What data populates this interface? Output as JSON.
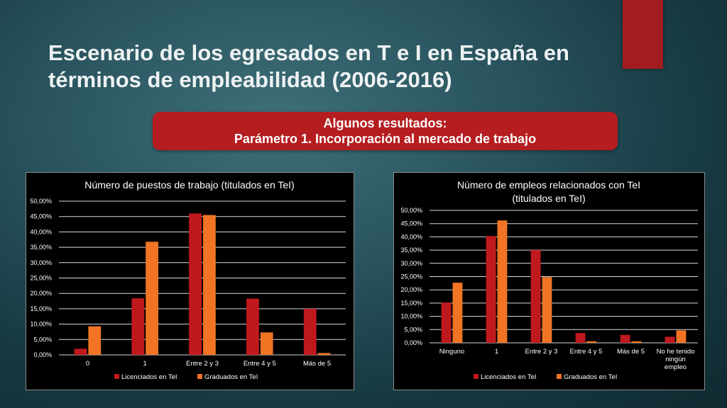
{
  "slide": {
    "title_line1": "Escenario de los egresados en T e I  en España en",
    "title_line2": "términos de empleabilidad (2006-2016)",
    "subtitle_line1": "Algunos resultados:",
    "subtitle_line2": "Parámetro 1. Incorporación al mercado de trabajo"
  },
  "colors": {
    "licenciados": "#c0191d",
    "graduados": "#f07424",
    "accent": "#a31c1f"
  },
  "chart_data": [
    {
      "type": "bar",
      "title": "Número de puestos de trabajo (titulados en TeI)",
      "categories": [
        [
          "0"
        ],
        [
          "1"
        ],
        [
          "Entre  2 y 3"
        ],
        [
          "Entre 4 y 5"
        ],
        [
          "Más de 5"
        ]
      ],
      "series": [
        {
          "name": "Licenciados en TeI",
          "values": [
            2.0,
            18.4,
            46.0,
            18.3,
            15.0
          ]
        },
        {
          "name": "Graduados en TeI",
          "values": [
            9.3,
            36.8,
            45.5,
            7.3,
            0.6
          ]
        }
      ],
      "ylim": [
        0,
        50
      ],
      "yticks": [
        "0,00%",
        "5,00%",
        "10,00%",
        "15,00%",
        "20,00%",
        "25,00%",
        "30,00%",
        "35,00%",
        "40,00%",
        "45,00%",
        "50,00%"
      ],
      "legend_position": "bottom"
    },
    {
      "type": "bar",
      "title": "Número de empleos relacionados con TeI (titulados en TeI)",
      "categories": [
        [
          "Ninguno"
        ],
        [
          "1"
        ],
        [
          "Entre 2 y 3"
        ],
        [
          "Entre 4 y 5"
        ],
        [
          "Más de 5"
        ],
        [
          "No he tenido",
          "ningún",
          "empleo"
        ]
      ],
      "series": [
        {
          "name": "Licenciados en TeI",
          "values": [
            15.2,
            40.3,
            35.0,
            3.7,
            3.0,
            2.3
          ]
        },
        {
          "name": "Graduados en TeI",
          "values": [
            22.7,
            46.2,
            24.8,
            0.6,
            0.6,
            4.7
          ]
        }
      ],
      "ylim": [
        0,
        50
      ],
      "yticks": [
        "0,00%",
        "5,00%",
        "10,00%",
        "15,00%",
        "20,00%",
        "25,00%",
        "30,00%",
        "35,00%",
        "40,00%",
        "45,00%",
        "50,00%"
      ],
      "legend_position": "bottom"
    }
  ]
}
